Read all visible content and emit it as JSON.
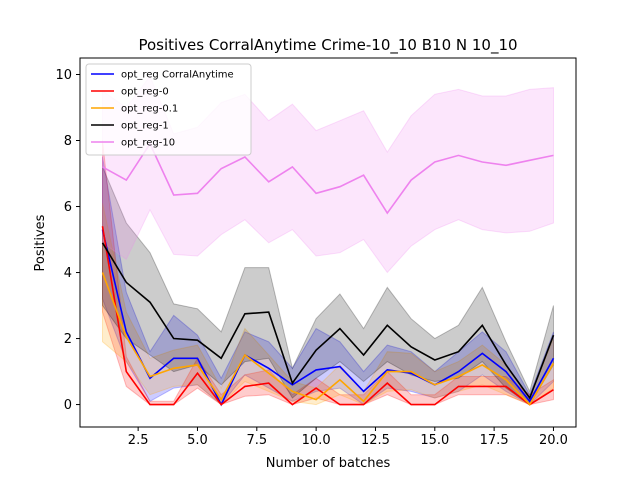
{
  "chart_data": {
    "type": "line",
    "title": "Positives CorralAnytime Crime-10_10 B10 N 10_10",
    "xlabel": "Number of batches",
    "ylabel": "Positives",
    "xlim": [
      0.05,
      20.95
    ],
    "ylim": [
      -0.68,
      10.5
    ],
    "x_ticks": [
      2.5,
      5.0,
      7.5,
      10.0,
      12.5,
      15.0,
      17.5,
      20.0
    ],
    "x_tick_labels": [
      "2.5",
      "5.0",
      "7.5",
      "10.0",
      "12.5",
      "15.0",
      "17.5",
      "20.0"
    ],
    "y_ticks": [
      0,
      2,
      4,
      6,
      8,
      10
    ],
    "y_tick_labels": [
      "0",
      "2",
      "4",
      "6",
      "8",
      "10"
    ],
    "legend_position": "top-left",
    "grid": false,
    "x": [
      1,
      2,
      3,
      4,
      5,
      6,
      7,
      8,
      9,
      10,
      11,
      12,
      13,
      14,
      15,
      16,
      17,
      18,
      19,
      20
    ],
    "series": [
      {
        "name": "opt_reg CorralAnytime",
        "color": "#0000ff",
        "values": [
          5.3,
          2.2,
          0.8,
          1.4,
          1.4,
          0.0,
          1.5,
          1.1,
          0.6,
          1.05,
          1.15,
          0.4,
          1.05,
          0.95,
          0.6,
          1.0,
          1.55,
          1.0,
          0.1,
          1.4
        ],
        "lower": [
          3.2,
          1.3,
          0.1,
          0.5,
          0.6,
          0.0,
          0.9,
          0.5,
          0.1,
          0.4,
          0.5,
          0.0,
          0.5,
          0.4,
          0.2,
          0.4,
          0.9,
          0.4,
          0.0,
          0.7
        ],
        "upper": [
          7.5,
          3.4,
          1.6,
          2.7,
          2.1,
          0.8,
          2.2,
          1.9,
          1.1,
          2.3,
          1.9,
          1.0,
          1.8,
          1.6,
          1.0,
          1.6,
          2.2,
          1.6,
          0.3,
          2.2
        ]
      },
      {
        "name": "opt_reg-0",
        "color": "#ff0000",
        "values": [
          5.4,
          1.0,
          0.0,
          0.0,
          0.95,
          0.0,
          0.55,
          0.65,
          0.0,
          0.5,
          0.0,
          0.0,
          0.65,
          0.0,
          0.0,
          0.55,
          0.55,
          0.55,
          0.0,
          0.45
        ],
        "lower": [
          2.8,
          0.55,
          0.0,
          0.0,
          0.5,
          0.0,
          0.25,
          0.3,
          0.0,
          0.2,
          0.0,
          0.0,
          0.3,
          0.0,
          0.0,
          0.3,
          0.3,
          0.3,
          0.0,
          0.15
        ],
        "upper": [
          8.0,
          1.45,
          0.1,
          0.1,
          1.4,
          0.3,
          0.9,
          1.05,
          0.3,
          0.8,
          0.3,
          0.3,
          1.0,
          0.3,
          0.3,
          0.85,
          0.85,
          0.85,
          0.3,
          0.75
        ]
      },
      {
        "name": "opt_reg-0.1",
        "color": "#ffa500",
        "values": [
          4.0,
          2.05,
          0.85,
          1.1,
          1.2,
          0.15,
          1.5,
          0.95,
          0.4,
          0.15,
          0.75,
          0.1,
          1.0,
          1.0,
          0.6,
          0.85,
          1.2,
          0.75,
          0.0,
          1.25
        ],
        "lower": [
          1.9,
          1.3,
          0.3,
          0.55,
          0.6,
          0.0,
          0.7,
          0.4,
          0.1,
          0.0,
          0.3,
          0.0,
          0.4,
          0.45,
          0.2,
          0.4,
          0.6,
          0.3,
          0.0,
          0.5
        ],
        "upper": [
          6.1,
          2.8,
          1.4,
          1.65,
          1.8,
          0.5,
          2.3,
          1.5,
          0.7,
          0.5,
          1.2,
          0.4,
          1.6,
          1.55,
          1.0,
          1.3,
          1.8,
          1.2,
          0.2,
          2.0
        ]
      },
      {
        "name": "opt_reg-1",
        "color": "#000000",
        "values": [
          4.9,
          3.7,
          3.1,
          2.0,
          1.95,
          1.4,
          2.75,
          2.8,
          0.65,
          1.65,
          2.3,
          1.5,
          2.4,
          1.75,
          1.35,
          1.6,
          2.4,
          1.2,
          0.2,
          2.1
        ],
        "lower": [
          3.0,
          2.0,
          1.5,
          1.0,
          1.2,
          0.6,
          1.3,
          1.4,
          0.2,
          0.8,
          1.3,
          0.7,
          1.3,
          0.9,
          0.7,
          0.8,
          1.3,
          0.5,
          0.0,
          1.2
        ],
        "upper": [
          7.2,
          5.5,
          4.6,
          3.05,
          2.9,
          2.2,
          4.15,
          4.15,
          1.1,
          2.6,
          3.35,
          2.3,
          3.55,
          2.6,
          2.0,
          2.4,
          3.55,
          1.9,
          0.4,
          3.0
        ]
      },
      {
        "name": "opt_reg-10",
        "color": "#ee82ee",
        "values": [
          7.2,
          6.8,
          7.9,
          6.35,
          6.4,
          7.15,
          7.5,
          6.75,
          7.2,
          6.4,
          6.6,
          6.95,
          5.8,
          6.8,
          7.35,
          7.55,
          7.35,
          7.25,
          7.4,
          7.55
        ],
        "lower": [
          4.9,
          4.4,
          5.9,
          4.55,
          4.5,
          5.15,
          5.6,
          4.9,
          5.3,
          4.5,
          4.6,
          5.0,
          4.0,
          4.8,
          5.3,
          5.6,
          5.3,
          5.2,
          5.25,
          5.5
        ],
        "upper": [
          9.5,
          9.0,
          9.95,
          8.2,
          8.4,
          9.15,
          9.4,
          8.6,
          9.1,
          8.3,
          8.6,
          8.9,
          7.65,
          8.75,
          9.4,
          9.55,
          9.35,
          9.35,
          9.55,
          9.6
        ]
      }
    ]
  }
}
